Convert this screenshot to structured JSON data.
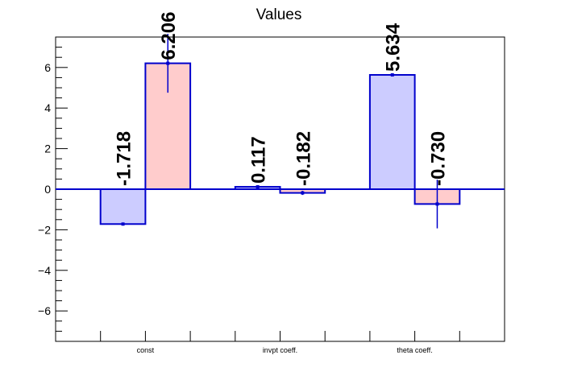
{
  "chart_data": {
    "type": "bar",
    "title": "Values",
    "xlabel": "",
    "ylabel": "",
    "ylim": [
      -7.5,
      7.5
    ],
    "y_ticks": [
      -6,
      -4,
      -2,
      0,
      2,
      4,
      6
    ],
    "y_tick_labels": [
      "−6",
      "−4",
      "−2",
      "0",
      "2",
      "4",
      "6"
    ],
    "categories": [
      "const",
      "invpt coeff.",
      "theta coeff."
    ],
    "series": [
      {
        "color": "#ccccff",
        "stroke": "#0000cc",
        "values": [
          -1.718,
          0.117,
          5.634
        ],
        "errors": [
          0.0,
          0.0,
          0.0
        ],
        "labels": [
          "-1.718",
          "0.117",
          "5.634"
        ]
      },
      {
        "color": "#ffcccc",
        "stroke": "#0000cc",
        "values": [
          6.206,
          -0.182,
          -0.73
        ],
        "errors": [
          1.45,
          0.1,
          1.2
        ],
        "labels": [
          "6.206",
          "-0.182",
          "-0.730"
        ]
      }
    ],
    "grid": false,
    "legend": "none"
  }
}
